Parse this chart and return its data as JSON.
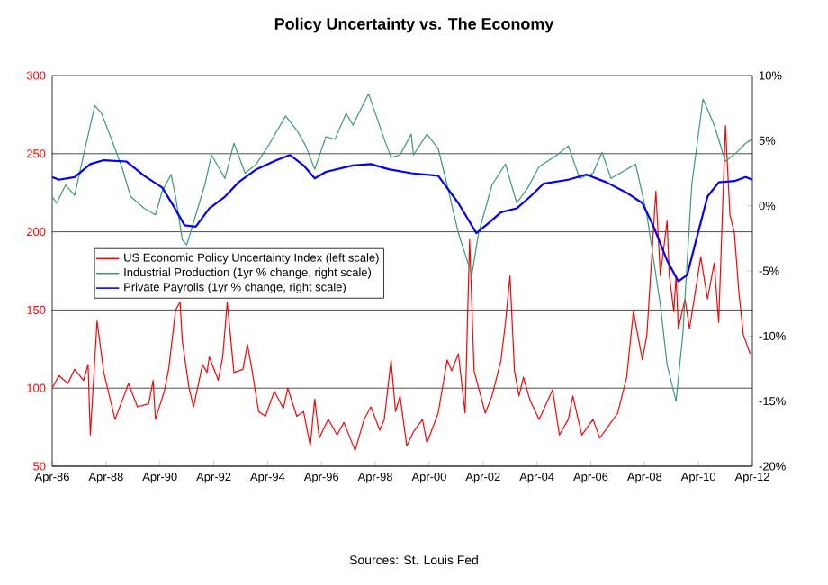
{
  "chart_data": {
    "type": "line",
    "title": "Policy Uncertainty vs. The Economy",
    "annotations": [
      "Sources: St. Louis Fed"
    ],
    "xlim": [
      "1986-04",
      "2012-04"
    ],
    "xticks": [
      {
        "value": "1986-04",
        "label": "Apr-86"
      },
      {
        "value": "1988-04",
        "label": "Apr-88"
      },
      {
        "value": "1990-04",
        "label": "Apr-90"
      },
      {
        "value": "1992-04",
        "label": "Apr-92"
      },
      {
        "value": "1994-04",
        "label": "Apr-94"
      },
      {
        "value": "1996-04",
        "label": "Apr-96"
      },
      {
        "value": "1998-04",
        "label": "Apr-98"
      },
      {
        "value": "2000-04",
        "label": "Apr-00"
      },
      {
        "value": "2002-04",
        "label": "Apr-02"
      },
      {
        "value": "2004-04",
        "label": "Apr-04"
      },
      {
        "value": "2006-04",
        "label": "Apr-06"
      },
      {
        "value": "2008-04",
        "label": "Apr-08"
      },
      {
        "value": "2010-04",
        "label": "Apr-10"
      },
      {
        "value": "2012-04",
        "label": "Apr-12"
      }
    ],
    "ylim": [
      50,
      300
    ],
    "yticks": [
      50,
      100,
      150,
      200,
      250,
      300
    ],
    "y2lim": [
      -20,
      10
    ],
    "y2ticks": [
      {
        "value": -20,
        "label": "-20%"
      },
      {
        "value": -15,
        "label": "-15%"
      },
      {
        "value": -10,
        "label": "-10%"
      },
      {
        "value": -5,
        "label": "-5%"
      },
      {
        "value": 0,
        "label": "0%"
      },
      {
        "value": 5,
        "label": "5%"
      },
      {
        "value": 10,
        "label": "10%"
      }
    ],
    "grid": "y",
    "legend": "left",
    "series": [
      {
        "name": "US Economic Policy Uncertainty Index (left scale)",
        "color": "#ff0000",
        "x": [
          "1986-04",
          "1986-07",
          "1986-11",
          "1987-02",
          "1987-06",
          "1987-08",
          "1987-09",
          "1987-12",
          "1988-03",
          "1988-08",
          "1988-12",
          "1989-02",
          "1989-06",
          "1989-11",
          "1990-01",
          "1990-02",
          "1990-06",
          "1990-08",
          "1990-11",
          "1991-01",
          "1991-02",
          "1991-05",
          "1991-07",
          "1991-11",
          "1992-01",
          "1992-02",
          "1992-06",
          "1992-08",
          "1992-10",
          "1993-01",
          "1993-05",
          "1993-07",
          "1993-09",
          "1993-12",
          "1994-03",
          "1994-07",
          "1994-11",
          "1995-01",
          "1995-05",
          "1995-08",
          "1995-11",
          "1996-01",
          "1996-03",
          "1996-07",
          "1996-11",
          "1997-02",
          "1997-07",
          "1997-11",
          "1998-02",
          "1998-06",
          "1998-08",
          "1998-11",
          "1999-01",
          "1999-03",
          "1999-06",
          "1999-09",
          "2000-01",
          "2000-03",
          "2000-08",
          "2000-12",
          "2001-02",
          "2001-05",
          "2001-08",
          "2001-10",
          "2001-12",
          "2002-05",
          "2002-08",
          "2002-12",
          "2003-02",
          "2003-04",
          "2003-06",
          "2003-08",
          "2003-10",
          "2004-01",
          "2004-05",
          "2004-11",
          "2005-02",
          "2005-06",
          "2005-08",
          "2005-12",
          "2006-05",
          "2006-08",
          "2006-12",
          "2007-04",
          "2007-08",
          "2007-11",
          "2008-03",
          "2008-05",
          "2008-09",
          "2008-11",
          "2009-02",
          "2009-03",
          "2009-05",
          "2009-06",
          "2009-07",
          "2009-10",
          "2009-12",
          "2010-05",
          "2010-08",
          "2010-11",
          "2011-01",
          "2011-04",
          "2011-06",
          "2011-08",
          "2011-10",
          "2011-12",
          "2012-03"
        ],
        "values": [
          100,
          108,
          103,
          112,
          105,
          115,
          70,
          143,
          110,
          80,
          95,
          103,
          88,
          90,
          105,
          80,
          98,
          113,
          150,
          155,
          130,
          100,
          88,
          115,
          110,
          120,
          105,
          120,
          155,
          110,
          112,
          128,
          112,
          85,
          82,
          98,
          87,
          100,
          82,
          85,
          63,
          93,
          68,
          80,
          70,
          78,
          60,
          80,
          88,
          73,
          80,
          118,
          85,
          95,
          63,
          72,
          80,
          65,
          84,
          118,
          111,
          122,
          84,
          195,
          111,
          84,
          95,
          118,
          142,
          172,
          111,
          95,
          107,
          92,
          80,
          99,
          70,
          80,
          95,
          70,
          80,
          68,
          76,
          84,
          107,
          149,
          118,
          134,
          226,
          172,
          207,
          172,
          149,
          172,
          138,
          157,
          138,
          184,
          157,
          180,
          142,
          268,
          211,
          199,
          161,
          134,
          122
        ]
      },
      {
        "name": "Industrial Production (1yr % change, right scale)",
        "color": "#3a9a72",
        "axis": "y2",
        "x": [
          "1986-04",
          "1986-06",
          "1986-10",
          "1987-02",
          "1987-06",
          "1987-11",
          "1988-02",
          "1988-06",
          "1988-11",
          "1989-03",
          "1989-09",
          "1990-02",
          "1990-05",
          "1990-09",
          "1990-11",
          "1991-02",
          "1991-04",
          "1991-08",
          "1991-12",
          "1992-03",
          "1992-09",
          "1993-01",
          "1993-06",
          "1993-11",
          "1994-05",
          "1994-12",
          "1995-05",
          "1995-09",
          "1996-01",
          "1996-06",
          "1996-10",
          "1997-03",
          "1997-06",
          "1998-01",
          "1998-05",
          "1998-08",
          "1998-11",
          "1999-03",
          "1999-08",
          "1999-09",
          "2000-03",
          "2000-08",
          "2000-12",
          "2001-05",
          "2001-11",
          "2002-02",
          "2002-08",
          "2003-02",
          "2003-07",
          "2003-12",
          "2004-05",
          "2005-01",
          "2005-06",
          "2005-11",
          "2006-05",
          "2006-09",
          "2007-01",
          "2007-08",
          "2007-12",
          "2008-05",
          "2008-11",
          "2009-02",
          "2009-06",
          "2009-09",
          "2010-01",
          "2010-06",
          "2010-11",
          "2011-04",
          "2011-09",
          "2012-01",
          "2012-04"
        ],
        "values": [
          0.7,
          0.2,
          1.6,
          0.8,
          3.9,
          7.7,
          7.1,
          5.3,
          3.0,
          0.7,
          -0.2,
          -0.7,
          1.1,
          2.4,
          0.7,
          -2.6,
          -3.0,
          -0.7,
          1.6,
          3.9,
          2.1,
          4.8,
          2.5,
          3.2,
          4.8,
          6.9,
          5.8,
          4.6,
          2.8,
          5.3,
          5.1,
          7.1,
          6.2,
          8.6,
          6.6,
          5.1,
          3.7,
          3.9,
          5.5,
          3.9,
          5.5,
          4.4,
          1.6,
          -2.1,
          -5.3,
          -2.1,
          1.6,
          3.2,
          0.2,
          1.4,
          3.0,
          3.9,
          4.6,
          2.1,
          2.5,
          4.1,
          2.1,
          2.8,
          3.2,
          -0.7,
          -7.6,
          -12.2,
          -15.0,
          -9.9,
          1.6,
          8.2,
          6.2,
          3.4,
          4.1,
          4.8,
          5.1
        ]
      },
      {
        "name": "Private Payrolls (1yr % change, right scale)",
        "color": "#0000ff",
        "axis": "y2",
        "x": [
          "1986-04",
          "1986-07",
          "1987-02",
          "1987-09",
          "1988-03",
          "1989-01",
          "1989-09",
          "1990-05",
          "1990-10",
          "1991-03",
          "1991-08",
          "1992-02",
          "1992-09",
          "1993-03",
          "1993-11",
          "1994-08",
          "1995-02",
          "1995-08",
          "1996-01",
          "1996-06",
          "1997-06",
          "1998-02",
          "1998-10",
          "1999-08",
          "2000-08",
          "2001-05",
          "2002-01",
          "2002-06",
          "2002-12",
          "2003-07",
          "2004-01",
          "2004-07",
          "2005-06",
          "2006-02",
          "2006-11",
          "2007-08",
          "2008-03",
          "2008-08",
          "2009-02",
          "2009-07",
          "2009-11",
          "2010-03",
          "2010-08",
          "2011-01",
          "2011-08",
          "2012-01",
          "2012-04"
        ],
        "values": [
          2.2,
          2.0,
          2.2,
          3.2,
          3.5,
          3.4,
          2.3,
          1.4,
          0.0,
          -1.5,
          -1.6,
          -0.2,
          0.7,
          1.8,
          2.8,
          3.5,
          3.9,
          3.1,
          2.1,
          2.6,
          3.1,
          3.2,
          2.8,
          2.5,
          2.3,
          0.2,
          -2.1,
          -1.4,
          -0.5,
          -0.2,
          0.7,
          1.7,
          2.0,
          2.4,
          1.8,
          1.0,
          0.2,
          -1.6,
          -4.2,
          -5.8,
          -5.3,
          -2.6,
          0.7,
          1.8,
          1.9,
          2.2,
          2.0
        ]
      }
    ]
  }
}
